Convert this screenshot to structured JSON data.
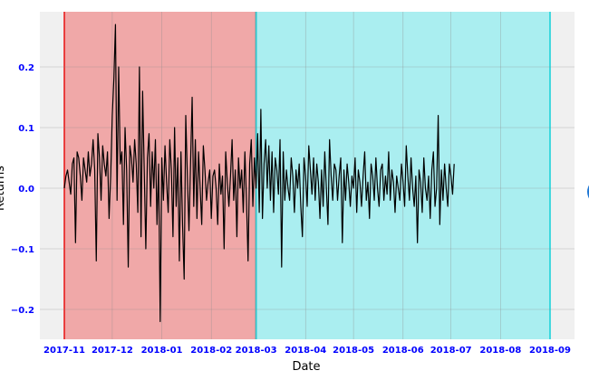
{
  "chart_data": {
    "type": "line",
    "xlabel": "Date",
    "ylabel": "Returns",
    "x_range": [
      "2017-11-01",
      "2018-09-01"
    ],
    "ylim": [
      -0.25,
      0.29
    ],
    "grid": true,
    "x_ticks": [
      "2017-11-01",
      "2017-12-01",
      "2018-01-01",
      "2018-02-01",
      "2018-03-01",
      "2018-04-01",
      "2018-05-01",
      "2018-06-01",
      "2018-07-01",
      "2018-08-01",
      "2018-09-01"
    ],
    "x_tick_labels": [
      "2017-11",
      "2017-12",
      "2018-01",
      "2018-02",
      "2018-03",
      "2018-04",
      "2018-05",
      "2018-06",
      "2018-07",
      "2018-08",
      "2018-09"
    ],
    "y_ticks": [
      -0.2,
      -0.1,
      0.0,
      0.1,
      0.2
    ],
    "y_tick_labels": [
      "−0.2",
      "−0.1",
      "0.0",
      "0.1",
      "0.2"
    ],
    "regions": [
      {
        "start": "2017-11-01",
        "end": "2018-03-01",
        "fill": "#f0a8a8",
        "edge": "#ff0000"
      },
      {
        "start": "2018-03-01",
        "end": "2018-09-01",
        "fill": "#aaeef0",
        "edge": "#00e5ee"
      }
    ],
    "series": [
      {
        "color": "#000000",
        "start_date": "2017-11-01",
        "step_days": 1,
        "values": [
          0.0,
          0.02,
          0.03,
          0.01,
          -0.01,
          0.04,
          0.05,
          -0.09,
          0.06,
          0.05,
          0.02,
          -0.02,
          0.05,
          0.03,
          0.01,
          0.06,
          0.02,
          0.04,
          0.08,
          0.03,
          -0.12,
          0.09,
          0.05,
          -0.02,
          0.07,
          0.04,
          0.02,
          0.06,
          -0.05,
          0.02,
          0.12,
          0.18,
          0.27,
          -0.02,
          0.2,
          0.04,
          0.06,
          -0.06,
          0.1,
          0.03,
          -0.13,
          0.07,
          0.05,
          0.01,
          0.08,
          0.04,
          -0.04,
          0.2,
          -0.08,
          0.16,
          0.03,
          -0.1,
          0.05,
          0.09,
          -0.03,
          0.06,
          0.0,
          0.08,
          -0.06,
          0.04,
          -0.22,
          0.05,
          -0.02,
          0.07,
          0.01,
          -0.04,
          0.08,
          0.03,
          -0.08,
          0.1,
          -0.03,
          0.05,
          -0.12,
          0.06,
          -0.06,
          -0.15,
          0.12,
          0.02,
          -0.07,
          0.04,
          0.15,
          -0.03,
          0.08,
          -0.05,
          0.06,
          0.0,
          -0.06,
          0.07,
          0.03,
          -0.02,
          0.01,
          0.03,
          -0.05,
          0.02,
          0.03,
          0.0,
          -0.06,
          0.04,
          -0.01,
          0.02,
          -0.1,
          0.06,
          0.01,
          -0.03,
          0.02,
          0.08,
          -0.02,
          0.03,
          -0.08,
          0.05,
          0.0,
          0.03,
          -0.04,
          0.06,
          -0.02,
          -0.12,
          0.04,
          0.08,
          -0.03,
          0.05,
          0.0,
          0.09,
          -0.04,
          0.13,
          -0.05,
          0.04,
          0.08,
          0.0,
          0.07,
          -0.02,
          0.06,
          -0.04,
          0.05,
          0.03,
          -0.01,
          0.08,
          -0.13,
          0.06,
          -0.02,
          0.03,
          0.0,
          -0.02,
          0.05,
          0.02,
          -0.04,
          0.03,
          0.0,
          0.04,
          -0.03,
          -0.08,
          0.05,
          0.02,
          -0.03,
          0.07,
          0.03,
          -0.01,
          0.05,
          -0.02,
          0.04,
          0.01,
          -0.05,
          0.03,
          -0.03,
          0.06,
          0.0,
          -0.06,
          0.08,
          0.02,
          -0.02,
          0.04,
          0.03,
          -0.02,
          0.02,
          0.05,
          -0.09,
          0.03,
          -0.02,
          0.04,
          0.01,
          -0.03,
          0.02,
          0.0,
          0.05,
          -0.04,
          0.03,
          0.01,
          -0.03,
          0.02,
          0.06,
          -0.02,
          0.01,
          -0.05,
          0.04,
          0.02,
          -0.02,
          0.05,
          0.0,
          -0.03,
          0.03,
          0.04,
          -0.02,
          0.02,
          -0.01,
          0.06,
          -0.02,
          0.03,
          0.01,
          -0.04,
          0.02,
          0.0,
          -0.02,
          0.04,
          0.01,
          -0.03,
          0.07,
          0.02,
          -0.02,
          0.05,
          0.0,
          -0.03,
          0.02,
          -0.09,
          0.03,
          0.01,
          -0.04,
          0.05,
          0.0,
          -0.02,
          0.02,
          -0.05,
          0.03,
          0.06,
          -0.03,
          0.0,
          0.12,
          -0.06,
          0.03,
          -0.02,
          0.04,
          0.0,
          -0.03,
          0.04,
          0.02,
          -0.01,
          0.04
        ]
      }
    ]
  }
}
